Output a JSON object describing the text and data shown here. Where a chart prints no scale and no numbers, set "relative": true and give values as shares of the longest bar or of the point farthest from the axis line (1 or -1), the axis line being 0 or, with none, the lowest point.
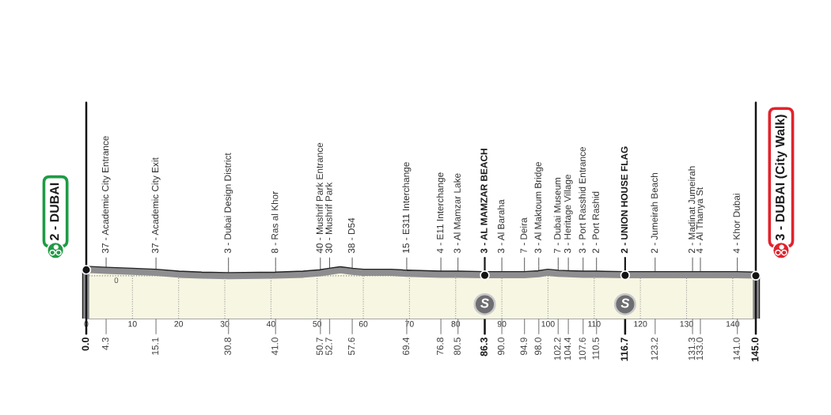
{
  "chart_data": {
    "type": "area",
    "relative": true,
    "xlim": [
      0,
      145
    ],
    "xticks": [
      0,
      10,
      20,
      30,
      40,
      50,
      60,
      70,
      80,
      90,
      100,
      110,
      120,
      130,
      140
    ],
    "tick_labels": "x",
    "grid": "x",
    "series": [
      {
        "color": "#f7f6e2",
        "x": [
          0,
          4.3,
          10,
          15.1,
          20,
          25,
          30.8,
          41.0,
          47,
          50.7,
          52.7,
          55,
          57.6,
          60,
          66,
          69.4,
          76.8,
          80.5,
          86.3,
          90.0,
          94.9,
          98.0,
          100,
          102.2,
          104.4,
          107.6,
          110.5,
          116.7,
          123.2,
          131.3,
          133.0,
          141.0,
          145.0
        ],
        "values": [
          1.0,
          0.98,
          0.96,
          0.94,
          0.9,
          0.88,
          0.87,
          0.88,
          0.9,
          0.93,
          0.96,
          0.99,
          0.96,
          0.94,
          0.94,
          0.92,
          0.9,
          0.9,
          0.89,
          0.89,
          0.89,
          0.91,
          0.94,
          0.92,
          0.91,
          0.9,
          0.9,
          0.89,
          0.89,
          0.89,
          0.89,
          0.89,
          0.88
        ]
      },
      {
        "type": "scatter",
        "color": "#141414",
        "marker": "circle",
        "x": [
          0,
          86.3,
          116.7,
          145.0
        ],
        "values": [
          1.0,
          0.89,
          0.89,
          0.88
        ]
      }
    ],
    "ref_lines": [
      {
        "axis": "y",
        "value": 0.88,
        "line_style": "dotted",
        "color": "#8a8a8a"
      },
      {
        "axis": "x",
        "value": 0,
        "label": "0.0",
        "color": "#141414"
      },
      {
        "axis": "x",
        "value": 4.3,
        "label": "4.3",
        "color": "#8c8c8c"
      },
      {
        "axis": "x",
        "value": 15.1,
        "label": "15.1",
        "color": "#8c8c8c"
      },
      {
        "axis": "x",
        "value": 30.8,
        "label": "30.8",
        "color": "#8c8c8c"
      },
      {
        "axis": "x",
        "value": 41.0,
        "label": "41.0",
        "color": "#8c8c8c"
      },
      {
        "axis": "x",
        "value": 50.7,
        "label": "50.7",
        "color": "#8c8c8c"
      },
      {
        "axis": "x",
        "value": 52.7,
        "label": "52.7",
        "color": "#8c8c8c"
      },
      {
        "axis": "x",
        "value": 57.6,
        "label": "57.6",
        "color": "#8c8c8c"
      },
      {
        "axis": "x",
        "value": 69.4,
        "label": "69.4",
        "color": "#8c8c8c"
      },
      {
        "axis": "x",
        "value": 76.8,
        "label": "76.8",
        "color": "#8c8c8c"
      },
      {
        "axis": "x",
        "value": 80.5,
        "label": "80.5",
        "color": "#8c8c8c"
      },
      {
        "axis": "x",
        "value": 86.3,
        "label": "86.3",
        "color": "#141414"
      },
      {
        "axis": "x",
        "value": 90.0,
        "label": "90.0",
        "color": "#8c8c8c"
      },
      {
        "axis": "x",
        "value": 94.9,
        "label": "94.9",
        "color": "#8c8c8c"
      },
      {
        "axis": "x",
        "value": 98.0,
        "label": "98.0",
        "color": "#8c8c8c"
      },
      {
        "axis": "x",
        "value": 102.2,
        "label": "102.2",
        "color": "#8c8c8c"
      },
      {
        "axis": "x",
        "value": 104.4,
        "label": "104.4",
        "color": "#8c8c8c"
      },
      {
        "axis": "x",
        "value": 107.6,
        "label": "107.6",
        "color": "#8c8c8c"
      },
      {
        "axis": "x",
        "value": 110.5,
        "label": "110.5",
        "color": "#8c8c8c"
      },
      {
        "axis": "x",
        "value": 116.7,
        "label": "116.7",
        "color": "#141414"
      },
      {
        "axis": "x",
        "value": 123.2,
        "label": "123.2",
        "color": "#8c8c8c"
      },
      {
        "axis": "x",
        "value": 131.3,
        "label": "131.3",
        "color": "#8c8c8c"
      },
      {
        "axis": "x",
        "value": 133.0,
        "label": "133.0",
        "color": "#8c8c8c"
      },
      {
        "axis": "x",
        "value": 141.0,
        "label": "141.0",
        "color": "#8c8c8c"
      },
      {
        "axis": "x",
        "value": 145.0,
        "label": "145.0",
        "color": "#141414"
      }
    ],
    "annotations": [
      "2 - DUBAI",
      {
        "text": "0",
        "x": 6.5,
        "y": 0.88
      },
      {
        "text": "37 - Academic City Entrance",
        "x": 4.3,
        "y": 0.98
      },
      {
        "text": "37 - Academic City Exit",
        "x": 15.1,
        "y": 0.94
      },
      {
        "text": "3 - Dubai Design District",
        "x": 30.8,
        "y": 0.87
      },
      {
        "text": "8 - Ras al Khor",
        "x": 41.0,
        "y": 0.88
      },
      {
        "text": "40 - Mushrif Park Entrance",
        "x": 50.7,
        "y": 0.93
      },
      {
        "text": "30 - Mushrif Park",
        "x": 52.7,
        "y": 0.96
      },
      {
        "text": "38 - D54",
        "x": 57.6,
        "y": 0.96
      },
      {
        "text": "15 - E311 Interchange",
        "x": 69.4,
        "y": 0.92
      },
      {
        "text": "4 - E11 Interchange",
        "x": 76.8,
        "y": 0.9
      },
      {
        "text": "3 - Al Mamzar Lake",
        "x": 80.5,
        "y": 0.9
      },
      {
        "text": "3 - AL MAMZAR BEACH",
        "x": 86.3,
        "y": 0.89
      },
      "S",
      {
        "text": "3 - Al Baraha",
        "x": 90.0,
        "y": 0.89
      },
      {
        "text": "7 - Deira",
        "x": 94.9,
        "y": 0.89
      },
      {
        "text": "3 - Al Maktoum Bridge",
        "x": 98.0,
        "y": 0.91
      },
      {
        "text": "7 - Dubai Museum",
        "x": 102.2,
        "y": 0.92
      },
      {
        "text": "3 - Heritage Village",
        "x": 104.4,
        "y": 0.91
      },
      {
        "text": "3 - Port Rasshid Entrance",
        "x": 107.6,
        "y": 0.9
      },
      {
        "text": "2 - Port Rashid",
        "x": 110.5,
        "y": 0.9
      },
      {
        "text": "2 - UNION HOUSE FLAG",
        "x": 116.7,
        "y": 0.89
      },
      "S",
      {
        "text": "2 - Jumeirah Beach",
        "x": 123.2,
        "y": 0.89
      },
      {
        "text": "2 - Madinat Jumeirah",
        "x": 131.3,
        "y": 0.89
      },
      {
        "text": "4 - Al Thanya St",
        "x": 133.0,
        "y": 0.89
      },
      {
        "text": "4 - Khor Dubai",
        "x": 141.0,
        "y": 0.89
      },
      "3 - DUBAI (City Walk)"
    ]
  }
}
